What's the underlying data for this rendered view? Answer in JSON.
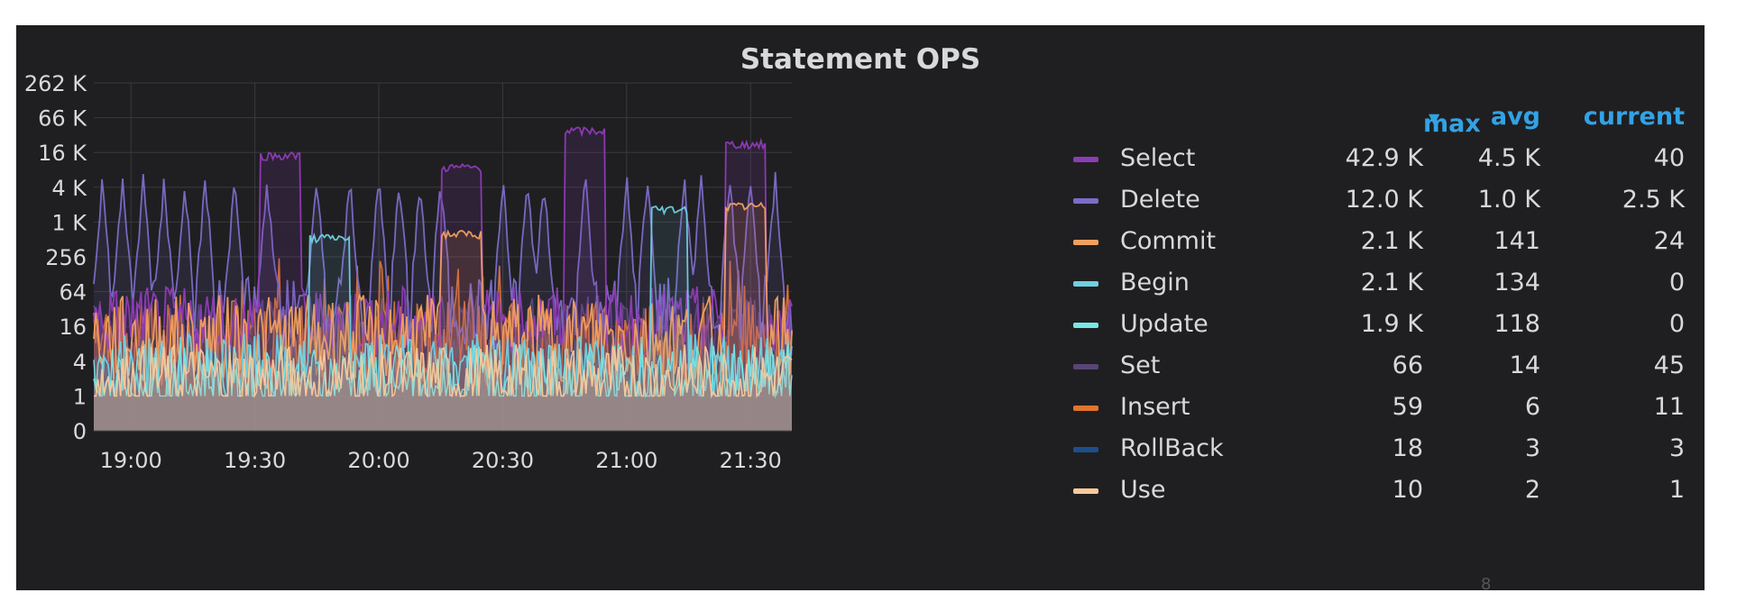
{
  "panel": {
    "title": "Statement OPS",
    "watermark": "8"
  },
  "legend": {
    "headers": {
      "max": "max",
      "max_sort_icon": "caret-down-icon",
      "avg": "avg",
      "current": "current"
    },
    "rows": [
      {
        "name": "Select",
        "color": "#8f3bb8",
        "max": "42.9 K",
        "avg": "4.5 K",
        "current": "40"
      },
      {
        "name": "Delete",
        "color": "#7b6dc8",
        "max": "12.0 K",
        "avg": "1.0 K",
        "current": "2.5 K"
      },
      {
        "name": "Commit",
        "color": "#f2a05e",
        "max": "2.1 K",
        "avg": "141",
        "current": "24"
      },
      {
        "name": "Begin",
        "color": "#6ed0e0",
        "max": "2.1 K",
        "avg": "134",
        "current": "0"
      },
      {
        "name": "Update",
        "color": "#78e6e6",
        "max": "1.9 K",
        "avg": "118",
        "current": "0"
      },
      {
        "name": "Set",
        "color": "#584477",
        "max": "66",
        "avg": "14",
        "current": "45"
      },
      {
        "name": "Insert",
        "color": "#e0752d",
        "max": "59",
        "avg": "6",
        "current": "11"
      },
      {
        "name": "RollBack",
        "color": "#1f4e8c",
        "max": "18",
        "avg": "3",
        "current": "3"
      },
      {
        "name": "Use",
        "color": "#f9c99b",
        "max": "10",
        "avg": "2",
        "current": "1"
      }
    ]
  },
  "chart_data": {
    "type": "area",
    "title": "Statement OPS",
    "y_scale": "log",
    "y_ticks": [
      "262 K",
      "66 K",
      "16 K",
      "4 K",
      "1 K",
      "256",
      "64",
      "16",
      "4",
      "1",
      "0"
    ],
    "y_tick_values": [
      262144,
      65536,
      16384,
      4096,
      1024,
      256,
      64,
      16,
      4,
      1,
      0
    ],
    "x_ticks": [
      "19:00",
      "19:30",
      "20:00",
      "20:30",
      "21:00",
      "21:30"
    ],
    "x_range": [
      "18:51",
      "21:40"
    ],
    "grid": true,
    "legend_placement": "right",
    "series": [
      {
        "name": "Select",
        "max": 42900,
        "avg": 4500,
        "current": 40,
        "plateaus": [
          [
            "19:31",
            "19:41",
            16000
          ],
          [
            "20:15",
            "20:25",
            10000
          ],
          [
            "20:45",
            "20:55",
            42900
          ],
          [
            "21:24",
            "21:34",
            25000
          ]
        ]
      },
      {
        "name": "Delete",
        "max": 12000,
        "avg": 1000,
        "current": 2500,
        "spikes": [
          "18:53",
          "18:58",
          "19:03",
          "19:08",
          "19:13",
          "19:18",
          "19:25",
          "19:33",
          "19:45",
          "19:53",
          "20:00",
          "20:05",
          "20:10",
          "20:15",
          "20:30",
          "20:36",
          "20:40",
          "20:50",
          "21:00",
          "21:05",
          "21:14",
          "21:18",
          "21:25",
          "21:30",
          "21:36"
        ]
      },
      {
        "name": "Commit",
        "max": 2100,
        "avg": 141,
        "current": 24,
        "plateaus": [
          [
            "20:15",
            "20:25",
            700
          ],
          [
            "21:24",
            "21:34",
            2100
          ]
        ]
      },
      {
        "name": "Begin",
        "max": 2100,
        "avg": 134,
        "current": 0,
        "plateaus": [
          [
            "19:43",
            "19:53",
            600
          ],
          [
            "21:06",
            "21:15",
            1900
          ]
        ]
      },
      {
        "name": "Update",
        "max": 1900,
        "avg": 118,
        "current": 0
      },
      {
        "name": "Set",
        "max": 66,
        "avg": 14,
        "current": 45
      },
      {
        "name": "Insert",
        "max": 59,
        "avg": 6,
        "current": 11
      },
      {
        "name": "RollBack",
        "max": 18,
        "avg": 3,
        "current": 3
      },
      {
        "name": "Use",
        "max": 10,
        "avg": 2,
        "current": 1
      }
    ]
  }
}
